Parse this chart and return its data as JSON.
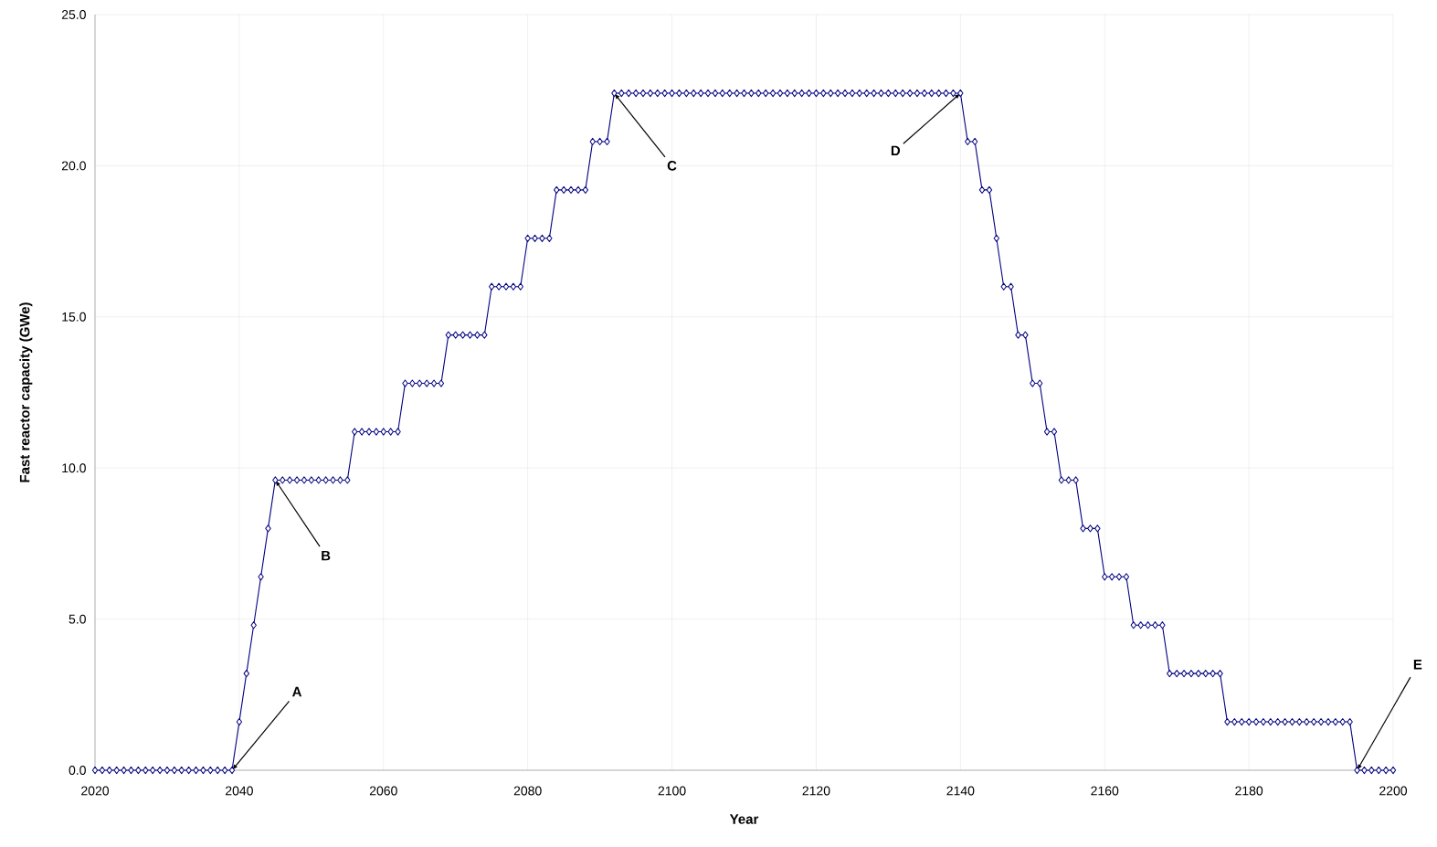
{
  "chart_data": {
    "type": "line",
    "xlabel": "Year",
    "ylabel": "Fast reactor capacity (GWe)",
    "x": [
      2020,
      2021,
      2022,
      2023,
      2024,
      2025,
      2026,
      2027,
      2028,
      2029,
      2030,
      2031,
      2032,
      2033,
      2034,
      2035,
      2036,
      2037,
      2038,
      2039,
      2040,
      2041,
      2042,
      2043,
      2044,
      2045,
      2046,
      2047,
      2048,
      2049,
      2050,
      2051,
      2052,
      2053,
      2054,
      2055,
      2056,
      2057,
      2058,
      2059,
      2060,
      2061,
      2062,
      2063,
      2064,
      2065,
      2066,
      2067,
      2068,
      2069,
      2070,
      2071,
      2072,
      2073,
      2074,
      2075,
      2076,
      2077,
      2078,
      2079,
      2080,
      2081,
      2082,
      2083,
      2084,
      2085,
      2086,
      2087,
      2088,
      2089,
      2090,
      2091,
      2092,
      2093,
      2094,
      2095,
      2096,
      2097,
      2098,
      2099,
      2100,
      2101,
      2102,
      2103,
      2104,
      2105,
      2106,
      2107,
      2108,
      2109,
      2110,
      2111,
      2112,
      2113,
      2114,
      2115,
      2116,
      2117,
      2118,
      2119,
      2120,
      2121,
      2122,
      2123,
      2124,
      2125,
      2126,
      2127,
      2128,
      2129,
      2130,
      2131,
      2132,
      2133,
      2134,
      2135,
      2136,
      2137,
      2138,
      2139,
      2140,
      2141,
      2142,
      2143,
      2144,
      2145,
      2146,
      2147,
      2148,
      2149,
      2150,
      2151,
      2152,
      2153,
      2154,
      2155,
      2156,
      2157,
      2158,
      2159,
      2160,
      2161,
      2162,
      2163,
      2164,
      2165,
      2166,
      2167,
      2168,
      2169,
      2170,
      2171,
      2172,
      2173,
      2174,
      2175,
      2176,
      2177,
      2178,
      2179,
      2180,
      2181,
      2182,
      2183,
      2184,
      2185,
      2186,
      2187,
      2188,
      2189,
      2190,
      2191,
      2192,
      2193,
      2194,
      2195,
      2196,
      2197,
      2198,
      2199,
      2200
    ],
    "series": [
      {
        "color": "#000080",
        "values": [
          0,
          0,
          0,
          0,
          0,
          0,
          0,
          0,
          0,
          0,
          0,
          0,
          0,
          0,
          0,
          0,
          0,
          0,
          0,
          0,
          1.6,
          3.2,
          4.8,
          6.4,
          8.0,
          9.6,
          9.6,
          9.6,
          9.6,
          9.6,
          9.6,
          9.6,
          9.6,
          9.6,
          9.6,
          9.6,
          11.2,
          11.2,
          11.2,
          11.2,
          11.2,
          11.2,
          11.2,
          12.8,
          12.8,
          12.8,
          12.8,
          12.8,
          12.8,
          14.4,
          14.4,
          14.4,
          14.4,
          14.4,
          14.4,
          16.0,
          16.0,
          16.0,
          16.0,
          16.0,
          17.6,
          17.6,
          17.6,
          17.6,
          19.2,
          19.2,
          19.2,
          19.2,
          19.2,
          20.8,
          20.8,
          20.8,
          22.4,
          22.4,
          22.4,
          22.4,
          22.4,
          22.4,
          22.4,
          22.4,
          22.4,
          22.4,
          22.4,
          22.4,
          22.4,
          22.4,
          22.4,
          22.4,
          22.4,
          22.4,
          22.4,
          22.4,
          22.4,
          22.4,
          22.4,
          22.4,
          22.4,
          22.4,
          22.4,
          22.4,
          22.4,
          22.4,
          22.4,
          22.4,
          22.4,
          22.4,
          22.4,
          22.4,
          22.4,
          22.4,
          22.4,
          22.4,
          22.4,
          22.4,
          22.4,
          22.4,
          22.4,
          22.4,
          22.4,
          22.4,
          22.4,
          20.8,
          20.8,
          19.2,
          19.2,
          17.6,
          16.0,
          16.0,
          14.4,
          14.4,
          12.8,
          12.8,
          11.2,
          11.2,
          9.6,
          9.6,
          9.6,
          8.0,
          8.0,
          8.0,
          6.4,
          6.4,
          6.4,
          6.4,
          4.8,
          4.8,
          4.8,
          4.8,
          4.8,
          3.2,
          3.2,
          3.2,
          3.2,
          3.2,
          3.2,
          3.2,
          3.2,
          1.6,
          1.6,
          1.6,
          1.6,
          1.6,
          1.6,
          1.6,
          1.6,
          1.6,
          1.6,
          1.6,
          1.6,
          1.6,
          1.6,
          1.6,
          1.6,
          1.6,
          1.6,
          0,
          0,
          0,
          0,
          0,
          0
        ]
      }
    ],
    "xlim": [
      2020,
      2200
    ],
    "ylim": [
      0,
      25
    ],
    "xticks": [
      2020,
      2040,
      2060,
      2080,
      2100,
      2120,
      2140,
      2160,
      2180,
      2200
    ],
    "yticks": [
      {
        "value": 0,
        "label": "0.0"
      },
      {
        "value": 5,
        "label": "5.0"
      },
      {
        "value": 10,
        "label": "10.0"
      },
      {
        "value": 15,
        "label": "15.0"
      },
      {
        "value": 20,
        "label": "20.0"
      },
      {
        "value": 25,
        "label": "25.0"
      }
    ],
    "grid": true,
    "marker": "diamond",
    "line_style": "solid",
    "annotations": [
      {
        "text": "A",
        "x": 2039,
        "y": 0
      },
      {
        "text": "B",
        "x": 2045,
        "y": 9.6
      },
      {
        "text": "C",
        "x": 2092,
        "y": 22.4
      },
      {
        "text": "D",
        "x": 2140,
        "y": 22.4
      },
      {
        "text": "E",
        "x": 2195,
        "y": 0
      }
    ]
  }
}
